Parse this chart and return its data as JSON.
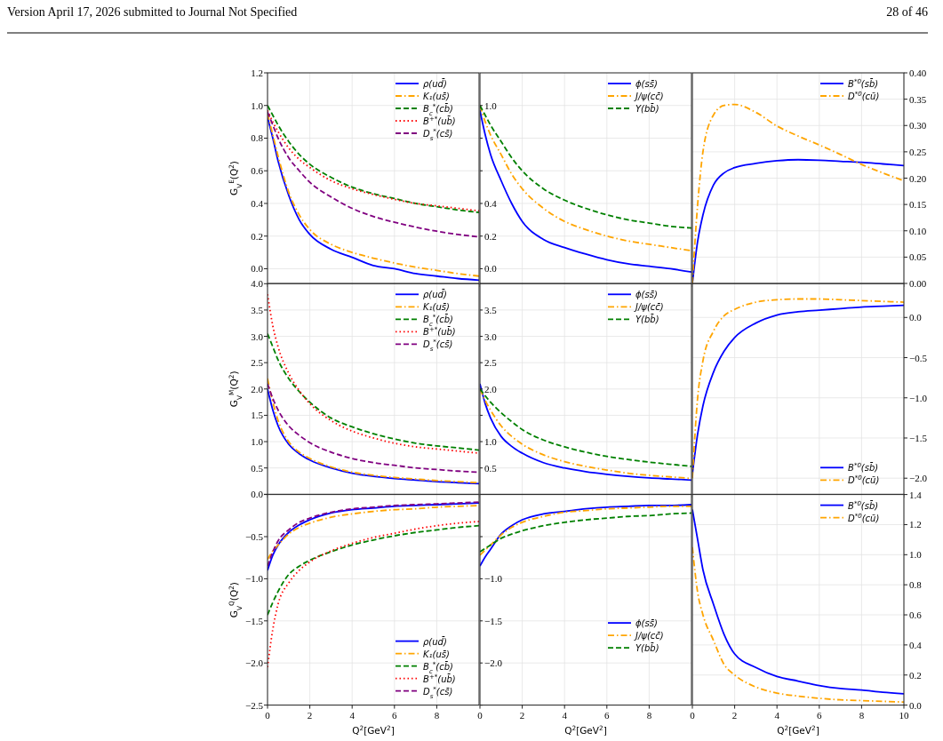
{
  "chart_data": [
    {
      "type": "line",
      "ylabel": "G$_{V}$$^{E}$(Q$^{2}$)",
      "annotations": [
        "Version April 17, 2026 submitted to Journal Not Specified",
        "28 of 46"
      ],
      "x": [
        0,
        0.25,
        0.5,
        1,
        1.5,
        2,
        3,
        4,
        5,
        6,
        7,
        8,
        9,
        10
      ],
      "xlim": [
        0,
        10
      ],
      "xticks": [
        0,
        2,
        4,
        6,
        8
      ],
      "ylim": [
        -0.09,
        1.2
      ],
      "yticks": [
        {
          "value": 0,
          "label": "0.0"
        },
        0.2,
        0.4,
        0.6,
        0.8,
        {
          "value": 1,
          "label": "1.0"
        },
        1.2
      ],
      "grid": true,
      "legend": "top right",
      "tick_labels": "y",
      "series": [
        {
          "name": "ρ(ud̄)",
          "color": "#0000ff",
          "line_style": "solid",
          "values": [
            0.93,
            0.8,
            0.66,
            0.45,
            0.3,
            0.21,
            0.12,
            0.07,
            0.02,
            0.0,
            -0.03,
            -0.045,
            -0.06,
            -0.07
          ]
        },
        {
          "name": "K₁(us̄)",
          "color": "#ffa500",
          "line_style": "dashdot",
          "values": [
            0.95,
            0.82,
            0.69,
            0.47,
            0.33,
            0.24,
            0.15,
            0.1,
            0.065,
            0.035,
            0.01,
            -0.01,
            -0.03,
            -0.045
          ]
        },
        {
          "name": "B$_{c}$$^{*}$(cb̄)",
          "color": "#008000",
          "line_style": "dashed",
          "values": [
            1.0,
            0.94,
            0.88,
            0.78,
            0.7,
            0.64,
            0.56,
            0.5,
            0.46,
            0.43,
            0.4,
            0.38,
            0.36,
            0.345
          ]
        },
        {
          "name": "B$^{+*}$(ub̄)",
          "color": "#ff0000",
          "line_style": "dotted",
          "values": [
            0.97,
            0.9,
            0.84,
            0.74,
            0.67,
            0.62,
            0.54,
            0.49,
            0.455,
            0.425,
            0.4,
            0.385,
            0.37,
            0.355
          ]
        },
        {
          "name": "D$_{s}$$^{*}$(cs̄)",
          "color": "#800080",
          "line_style": "dashed",
          "values": [
            0.96,
            0.88,
            0.8,
            0.68,
            0.6,
            0.53,
            0.44,
            0.37,
            0.32,
            0.285,
            0.255,
            0.23,
            0.21,
            0.195
          ]
        }
      ]
    },
    {
      "type": "line",
      "x": [
        0,
        0.25,
        0.5,
        1,
        1.5,
        2,
        3,
        4,
        5,
        6,
        7,
        8,
        9,
        10
      ],
      "xlim": [
        0,
        10
      ],
      "xticks": [
        0,
        2,
        4,
        6,
        8
      ],
      "ylim": [
        -0.09,
        1.2
      ],
      "yticks": [
        {
          "value": 0,
          "label": "0.0"
        },
        0.2,
        0.4,
        {
          "value": 0.6,
          "label": null
        },
        {
          "value": 0.8,
          "label": null
        },
        {
          "value": 1,
          "label": "1.0"
        }
      ],
      "grid": true,
      "legend": "top right",
      "tick_labels": "y",
      "series": [
        {
          "name": "ϕ(ss̄)",
          "color": "#0000ff",
          "line_style": "solid",
          "values": [
            0.97,
            0.82,
            0.7,
            0.54,
            0.4,
            0.29,
            0.18,
            0.13,
            0.09,
            0.055,
            0.03,
            0.015,
            0.0,
            -0.02
          ]
        },
        {
          "name": "J/ψ(cc̄)",
          "color": "#ffa500",
          "line_style": "dashdot",
          "values": [
            1.0,
            0.9,
            0.82,
            0.7,
            0.58,
            0.49,
            0.37,
            0.29,
            0.24,
            0.2,
            0.17,
            0.15,
            0.13,
            0.11
          ]
        },
        {
          "name": "Υ(bb̄)",
          "color": "#008000",
          "line_style": "dashed",
          "values": [
            1.0,
            0.94,
            0.88,
            0.78,
            0.68,
            0.6,
            0.49,
            0.42,
            0.37,
            0.33,
            0.3,
            0.28,
            0.26,
            0.25
          ]
        }
      ]
    },
    {
      "type": "line",
      "x": [
        0,
        0.25,
        0.5,
        1,
        1.5,
        2,
        3,
        4,
        5,
        6,
        7,
        8,
        9,
        10
      ],
      "xlim": [
        0,
        10
      ],
      "xticks": [
        0,
        2,
        4,
        6,
        8,
        10
      ],
      "y2lim": [
        0,
        0.4
      ],
      "y2ticks": [
        {
          "value": 0,
          "label": "0.00"
        },
        0.05,
        {
          "value": 0.1,
          "label": "0.10"
        },
        0.15,
        {
          "value": 0.2,
          "label": "0.20"
        },
        0.25,
        {
          "value": 0.3,
          "label": "0.30"
        },
        0.35,
        {
          "value": 0.4,
          "label": "0.40"
        }
      ],
      "grid": true,
      "legend": "top right",
      "tick_labels": "y",
      "series": [
        {
          "name": "B$^{*0}$(sb̄)",
          "color": "#0000ff",
          "line_style": "solid",
          "axis": "y2",
          "values": [
            0.0,
            0.08,
            0.13,
            0.187,
            0.21,
            0.22,
            0.228,
            0.233,
            0.235,
            0.234,
            0.232,
            0.23,
            0.227,
            0.224
          ]
        },
        {
          "name": "D$^{*0}$(cū)",
          "color": "#ffa500",
          "line_style": "dashdot",
          "axis": "y2",
          "values": [
            0.0,
            0.15,
            0.25,
            0.32,
            0.338,
            0.34,
            0.325,
            0.299,
            0.28,
            0.263,
            0.245,
            0.226,
            0.21,
            0.195
          ]
        }
      ]
    },
    {
      "type": "line",
      "ylabel": "G$_{V}$$^{M}$(Q$^{2}$)",
      "x": [
        0,
        0.25,
        0.5,
        1,
        1.5,
        2,
        3,
        4,
        5,
        6,
        7,
        8,
        9,
        10
      ],
      "xlim": [
        0,
        10
      ],
      "xticks": [
        0,
        2,
        4,
        6,
        8
      ],
      "ylim": [
        0,
        4
      ],
      "yticks": [
        {
          "value": 0,
          "label": "0.0"
        },
        0.5,
        {
          "value": 1,
          "label": "1.0"
        },
        1.5,
        {
          "value": 2,
          "label": "2.0"
        },
        2.5,
        {
          "value": 3,
          "label": "3.0"
        },
        3.5,
        {
          "value": 4,
          "label": "4.0"
        }
      ],
      "grid": true,
      "legend": "top right",
      "tick_labels": "y",
      "series": [
        {
          "name": "ρ(ud̄)",
          "color": "#0000ff",
          "line_style": "solid",
          "values": [
            2.0,
            1.6,
            1.3,
            0.95,
            0.77,
            0.65,
            0.5,
            0.4,
            0.34,
            0.3,
            0.27,
            0.24,
            0.22,
            0.2
          ]
        },
        {
          "name": "K₁(us̄)",
          "color": "#ffa500",
          "line_style": "dashdot",
          "values": [
            2.2,
            1.75,
            1.4,
            1.0,
            0.8,
            0.68,
            0.52,
            0.42,
            0.36,
            0.32,
            0.29,
            0.26,
            0.24,
            0.22
          ]
        },
        {
          "name": "B$_{c}$$^{*}$(cb̄)",
          "color": "#008000",
          "line_style": "dashed",
          "values": [
            3.05,
            2.8,
            2.55,
            2.2,
            1.95,
            1.75,
            1.45,
            1.28,
            1.15,
            1.05,
            0.97,
            0.92,
            0.88,
            0.84
          ]
        },
        {
          "name": "B$^{+*}$(ub̄)",
          "color": "#ff0000",
          "line_style": "dotted",
          "values": [
            3.8,
            3.2,
            2.8,
            2.3,
            1.97,
            1.72,
            1.4,
            1.2,
            1.07,
            0.97,
            0.9,
            0.86,
            0.82,
            0.78
          ]
        },
        {
          "name": "D$_{s}$$^{*}$(cs̄)",
          "color": "#800080",
          "line_style": "dashed",
          "values": [
            2.1,
            1.82,
            1.6,
            1.3,
            1.12,
            0.98,
            0.8,
            0.68,
            0.6,
            0.55,
            0.5,
            0.47,
            0.44,
            0.42
          ]
        }
      ]
    },
    {
      "type": "line",
      "x": [
        0,
        0.25,
        0.5,
        1,
        1.5,
        2,
        3,
        4,
        5,
        6,
        7,
        8,
        9,
        10
      ],
      "xlim": [
        0,
        10
      ],
      "xticks": [
        0,
        2,
        4,
        6,
        8
      ],
      "ylim": [
        0,
        4
      ],
      "yticks": [
        0.5,
        {
          "value": 1,
          "label": "1.0"
        },
        {
          "value": 1.5,
          "label": null
        },
        {
          "value": 2,
          "label": "2.0"
        },
        2.5,
        {
          "value": 3,
          "label": "3.0"
        },
        3.5
      ],
      "grid": true,
      "legend": "top right",
      "tick_labels": "y",
      "series": [
        {
          "name": "ϕ(ss̄)",
          "color": "#0000ff",
          "line_style": "solid",
          "values": [
            2.1,
            1.72,
            1.45,
            1.1,
            0.91,
            0.78,
            0.6,
            0.5,
            0.43,
            0.38,
            0.34,
            0.31,
            0.29,
            0.27
          ]
        },
        {
          "name": "J/ψ(cc̄)",
          "color": "#ffa500",
          "line_style": "dashdot",
          "values": [
            2.0,
            1.78,
            1.6,
            1.3,
            1.1,
            0.95,
            0.75,
            0.62,
            0.53,
            0.46,
            0.4,
            0.36,
            0.33,
            0.3
          ]
        },
        {
          "name": "Υ(bb̄)",
          "color": "#008000",
          "line_style": "dashed",
          "values": [
            2.0,
            1.87,
            1.75,
            1.55,
            1.38,
            1.23,
            1.03,
            0.9,
            0.8,
            0.72,
            0.66,
            0.61,
            0.57,
            0.53
          ]
        }
      ]
    },
    {
      "type": "line",
      "x": [
        0,
        0.25,
        0.5,
        1,
        1.5,
        2,
        3,
        4,
        5,
        6,
        7,
        8,
        9,
        10
      ],
      "xlim": [
        0,
        10
      ],
      "xticks": [
        0,
        2,
        4,
        6,
        8,
        10
      ],
      "y2lim": [
        -2.2,
        0.42
      ],
      "y2ticks": [
        {
          "value": -2,
          "label": "−2.0"
        },
        {
          "value": -1.5,
          "label": "−1.5"
        },
        {
          "value": -1,
          "label": "−1.0"
        },
        {
          "value": -0.5,
          "label": "−0.5"
        },
        {
          "value": 0,
          "label": "0.0"
        }
      ],
      "grid": true,
      "legend": "bottom right",
      "tick_labels": "y",
      "series": [
        {
          "name": "B$^{*0}$(sb̄)",
          "color": "#0000ff",
          "line_style": "solid",
          "axis": "y2",
          "values": [
            -1.95,
            -1.45,
            -1.1,
            -0.68,
            -0.42,
            -0.25,
            -0.07,
            0.03,
            0.07,
            0.09,
            0.11,
            0.13,
            0.14,
            0.15
          ]
        },
        {
          "name": "D$^{*0}$(cū)",
          "color": "#ffa500",
          "line_style": "dashdot",
          "axis": "y2",
          "values": [
            -2.0,
            -1.0,
            -0.54,
            -0.17,
            0.02,
            0.1,
            0.19,
            0.22,
            0.23,
            0.23,
            0.22,
            0.21,
            0.2,
            0.19
          ]
        }
      ]
    },
    {
      "type": "line",
      "xlabel": "Q$^{2}$[GeV$^{2}$]",
      "ylabel": "G$_{V}$$^{Q}$(Q$^{2}$)",
      "x": [
        0,
        0.25,
        0.5,
        1,
        1.5,
        2,
        3,
        4,
        5,
        6,
        7,
        8,
        9,
        10
      ],
      "xlim": [
        0,
        10
      ],
      "xticks": [
        0,
        2,
        4,
        6,
        8
      ],
      "ylim": [
        -2.5,
        0
      ],
      "yticks": [
        {
          "value": -2.5,
          "label": "−2.5"
        },
        {
          "value": -2,
          "label": "−2.0"
        },
        {
          "value": -1.5,
          "label": "−1.5"
        },
        {
          "value": -1,
          "label": "−1.0"
        },
        {
          "value": -0.5,
          "label": "−0.5"
        },
        {
          "value": 0,
          "label": null
        }
      ],
      "grid": true,
      "legend": "bottom right",
      "series": [
        {
          "name": "ρ(ud̄)",
          "color": "#0000ff",
          "line_style": "solid",
          "values": [
            -0.9,
            -0.72,
            -0.6,
            -0.45,
            -0.36,
            -0.3,
            -0.22,
            -0.18,
            -0.16,
            -0.14,
            -0.13,
            -0.12,
            -0.11,
            -0.1
          ]
        },
        {
          "name": "K₁(us̄)",
          "color": "#ffa500",
          "line_style": "dashdot",
          "values": [
            -0.77,
            -0.67,
            -0.6,
            -0.47,
            -0.39,
            -0.34,
            -0.27,
            -0.23,
            -0.2,
            -0.18,
            -0.17,
            -0.15,
            -0.14,
            -0.13
          ]
        },
        {
          "name": "B$_{c}$$^{*}$(cb̄)",
          "color": "#008000",
          "line_style": "dashed",
          "values": [
            -1.43,
            -1.28,
            -1.15,
            -0.95,
            -0.85,
            -0.78,
            -0.68,
            -0.6,
            -0.54,
            -0.49,
            -0.45,
            -0.42,
            -0.39,
            -0.37
          ]
        },
        {
          "name": "B$^{+*}$(ub̄)",
          "color": "#ff0000",
          "line_style": "dotted",
          "values": [
            -2.05,
            -1.6,
            -1.3,
            -1.05,
            -0.9,
            -0.8,
            -0.67,
            -0.58,
            -0.51,
            -0.46,
            -0.41,
            -0.37,
            -0.34,
            -0.32
          ]
        },
        {
          "name": "D$_{s}$$^{*}$(cs̄)",
          "color": "#800080",
          "line_style": "dashed",
          "values": [
            -0.85,
            -0.68,
            -0.55,
            -0.42,
            -0.33,
            -0.28,
            -0.21,
            -0.17,
            -0.15,
            -0.13,
            -0.12,
            -0.11,
            -0.1,
            -0.09
          ]
        }
      ]
    },
    {
      "type": "line",
      "xlabel": "Q$^{2}$[GeV$^{2}$]",
      "x": [
        0,
        0.25,
        0.5,
        1,
        1.5,
        2,
        3,
        4,
        5,
        6,
        7,
        8,
        9,
        10
      ],
      "xlim": [
        0,
        10
      ],
      "xticks": [
        0,
        2,
        4,
        6,
        8
      ],
      "ylim": [
        -2.5,
        0
      ],
      "yticks": [
        {
          "value": -2.5,
          "label": null
        },
        {
          "value": -2,
          "label": "−2.0"
        },
        {
          "value": -1.5,
          "label": "−1.5"
        },
        {
          "value": -1,
          "label": "−1.0"
        },
        {
          "value": -0.5,
          "label": null
        }
      ],
      "grid": true,
      "legend": "right",
      "series": [
        {
          "name": "ϕ(ss̄)",
          "color": "#0000ff",
          "line_style": "solid",
          "values": [
            -0.85,
            -0.74,
            -0.65,
            -0.47,
            -0.37,
            -0.3,
            -0.23,
            -0.2,
            -0.17,
            -0.15,
            -0.14,
            -0.13,
            -0.13,
            -0.12
          ]
        },
        {
          "name": "J/ψ(cc̄)",
          "color": "#ffa500",
          "line_style": "dashdot",
          "values": [
            -0.72,
            -0.66,
            -0.6,
            -0.48,
            -0.39,
            -0.33,
            -0.26,
            -0.21,
            -0.19,
            -0.17,
            -0.16,
            -0.15,
            -0.14,
            -0.14
          ]
        },
        {
          "name": "Υ(bb̄)",
          "color": "#008000",
          "line_style": "dashed",
          "values": [
            -0.68,
            -0.64,
            -0.6,
            -0.52,
            -0.47,
            -0.43,
            -0.37,
            -0.33,
            -0.3,
            -0.28,
            -0.26,
            -0.25,
            -0.23,
            -0.22
          ]
        }
      ]
    },
    {
      "type": "line",
      "xlabel": "Q$^{2}$[GeV$^{2}$]",
      "x": [
        0,
        0.25,
        0.5,
        1,
        1.5,
        2,
        3,
        4,
        5,
        6,
        7,
        8,
        9,
        10
      ],
      "xlim": [
        0,
        10
      ],
      "xticks": [
        0,
        2,
        4,
        6,
        8,
        10
      ],
      "y2lim": [
        0,
        1.4
      ],
      "y2ticks": [
        {
          "value": 0,
          "label": "0.0"
        },
        0.2,
        0.4,
        0.6,
        0.8,
        {
          "value": 1,
          "label": "1.0"
        },
        1.2,
        1.4
      ],
      "grid": true,
      "legend": "top right",
      "series": [
        {
          "name": "B$^{*0}$(sb̄)",
          "color": "#0000ff",
          "line_style": "solid",
          "axis": "y2",
          "values": [
            1.3,
            1.1,
            0.9,
            0.67,
            0.47,
            0.34,
            0.25,
            0.19,
            0.16,
            0.13,
            0.11,
            0.1,
            0.085,
            0.075
          ]
        },
        {
          "name": "D$^{*0}$(cū)",
          "color": "#ffa500",
          "line_style": "dashdot",
          "axis": "y2",
          "values": [
            1.05,
            0.75,
            0.6,
            0.43,
            0.27,
            0.2,
            0.12,
            0.08,
            0.06,
            0.045,
            0.035,
            0.03,
            0.025,
            0.02
          ]
        }
      ]
    }
  ]
}
